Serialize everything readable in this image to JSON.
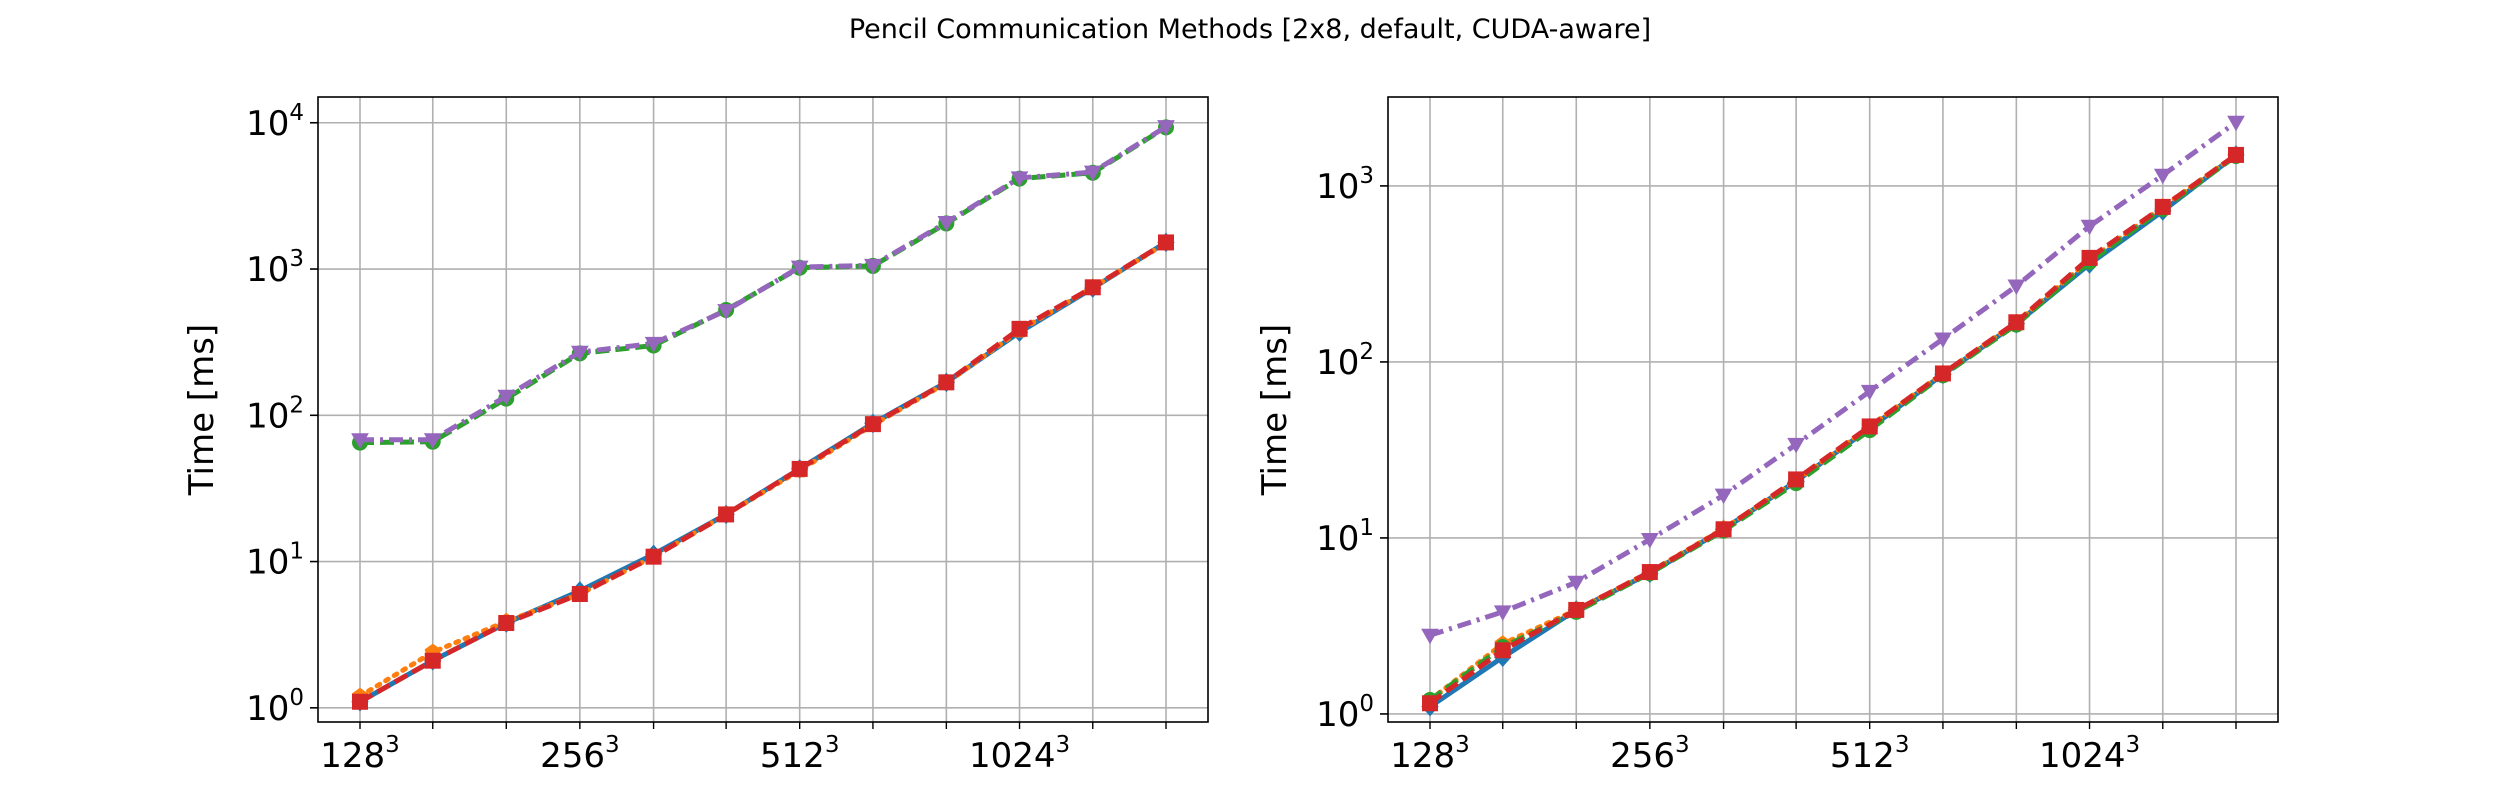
{
  "figure": {
    "title": "Pencil Communication Methods [2x8, default, CUDA-aware]"
  },
  "chart_data": [
    {
      "type": "line",
      "title": "",
      "xlabel": "",
      "ylabel": "Time [ms]",
      "yscale": "log",
      "ylim": [
        0.8,
        15000
      ],
      "grid": true,
      "x": [
        128,
        161,
        203,
        256,
        323,
        406,
        512,
        645,
        813,
        1024,
        1290,
        1625
      ],
      "xticks": [
        {
          "base": "128",
          "exp": "3"
        },
        {
          "base": "256",
          "exp": "3"
        },
        {
          "base": "512",
          "exp": "3"
        },
        {
          "base": "1024",
          "exp": "3"
        }
      ],
      "yticks": [
        {
          "base": "10",
          "exp": "0"
        },
        {
          "base": "10",
          "exp": "1"
        },
        {
          "base": "10",
          "exp": "2"
        },
        {
          "base": "10",
          "exp": "3"
        },
        {
          "base": "10",
          "exp": "4"
        }
      ],
      "series": [
        {
          "color": "#1f77b4",
          "linestyle": "solid",
          "marker": "diamond",
          "values": [
            1.1,
            2.1,
            3.8,
            6.3,
            11.2,
            21,
            43,
            88,
            168,
            370,
            740,
            1520
          ]
        },
        {
          "color": "#ff7f0e",
          "linestyle": "dotted",
          "marker": "pentagon",
          "values": [
            1.2,
            2.4,
            3.9,
            6.0,
            10.8,
            21,
            42,
            86,
            166,
            380,
            750,
            1500
          ]
        },
        {
          "color": "#2ca02c",
          "linestyle": "dashed",
          "marker": "circle",
          "values": [
            65,
            66,
            130,
            265,
            300,
            525,
            1020,
            1050,
            2050,
            4150,
            4550,
            9300
          ]
        },
        {
          "color": "#d62728",
          "linestyle": "dashed",
          "marker": "square",
          "values": [
            1.1,
            2.1,
            3.8,
            6.0,
            10.8,
            21,
            43,
            87,
            168,
            390,
            750,
            1520
          ]
        },
        {
          "color": "#9467bd",
          "linestyle": "dashdot",
          "marker": "triangle-down",
          "values": [
            68,
            68,
            135,
            270,
            310,
            520,
            1030,
            1060,
            2080,
            4200,
            4600,
            9400
          ]
        }
      ]
    },
    {
      "type": "line",
      "title": "",
      "xlabel": "",
      "ylabel": "Time [ms]",
      "yscale": "log",
      "ylim": [
        0.9,
        3200
      ],
      "grid": true,
      "x": [
        128,
        161,
        203,
        256,
        323,
        406,
        512,
        645,
        813,
        1024,
        1290,
        1625
      ],
      "xticks": [
        {
          "base": "128",
          "exp": "3"
        },
        {
          "base": "256",
          "exp": "3"
        },
        {
          "base": "512",
          "exp": "3"
        },
        {
          "base": "1024",
          "exp": "3"
        }
      ],
      "yticks": [
        {
          "base": "10",
          "exp": "0"
        },
        {
          "base": "10",
          "exp": "1"
        },
        {
          "base": "10",
          "exp": "2"
        },
        {
          "base": "10",
          "exp": "3"
        }
      ],
      "series": [
        {
          "color": "#1f77b4",
          "linestyle": "solid",
          "marker": "diamond",
          "values": [
            1.1,
            2.1,
            3.9,
            6.3,
            11.2,
            21,
            42,
            85,
            165,
            360,
            720,
            1500
          ]
        },
        {
          "color": "#ff7f0e",
          "linestyle": "dotted",
          "marker": "pentagon",
          "values": [
            1.2,
            2.5,
            3.9,
            6.4,
            11.3,
            21,
            43,
            86,
            167,
            380,
            760,
            1500
          ]
        },
        {
          "color": "#2ca02c",
          "linestyle": "dashed",
          "marker": "circle",
          "values": [
            1.2,
            2.4,
            3.8,
            6.3,
            11.0,
            20.5,
            41,
            84,
            163,
            370,
            740,
            1480
          ]
        },
        {
          "color": "#d62728",
          "linestyle": "dashed",
          "marker": "square",
          "values": [
            1.15,
            2.3,
            3.9,
            6.4,
            11.2,
            21.5,
            43,
            86,
            168,
            390,
            760,
            1500
          ]
        },
        {
          "color": "#9467bd",
          "linestyle": "dashdot",
          "marker": "triangle-down",
          "values": [
            2.8,
            3.8,
            5.6,
            9.8,
            17.5,
            34,
            68,
            135,
            270,
            590,
            1150,
            2300
          ]
        }
      ]
    }
  ]
}
